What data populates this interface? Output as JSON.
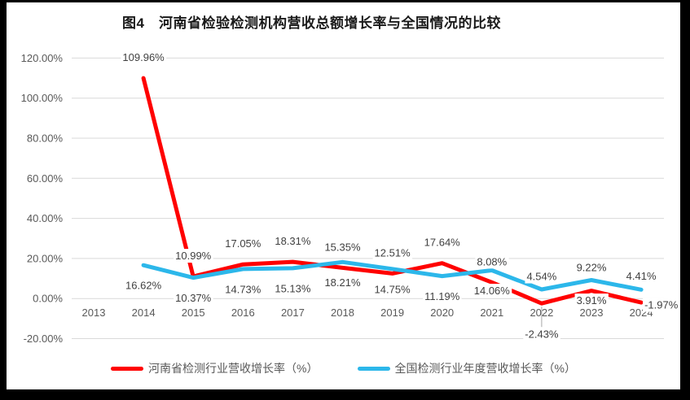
{
  "title": "图4　河南省检验检测机构营收总额增长率与全国情况的比较",
  "chart_data": {
    "type": "line",
    "categories": [
      "2013",
      "2014",
      "2015",
      "2016",
      "2017",
      "2018",
      "2019",
      "2020",
      "2021",
      "2022",
      "2023",
      "2024"
    ],
    "series": [
      {
        "name": "河南省检测行业营收增长率（%）",
        "color": "#FF0000",
        "values": [
          null,
          109.96,
          10.99,
          17.05,
          18.31,
          15.35,
          12.51,
          17.64,
          8.08,
          -2.43,
          3.91,
          -1.97
        ]
      },
      {
        "name": "全国检测行业年度营收增长率（%）",
        "color": "#2CB7EA",
        "values": [
          null,
          16.62,
          10.37,
          14.73,
          15.13,
          18.21,
          14.75,
          11.19,
          14.06,
          4.54,
          9.22,
          4.41
        ]
      }
    ],
    "xlabel": "",
    "ylabel": "",
    "ylim": [
      -20,
      120
    ],
    "ytick_step": 20,
    "ytick_labels": [
      "-20.00%",
      "0.00%",
      "20.00%",
      "40.00%",
      "60.00%",
      "80.00%",
      "100.00%",
      "120.00%"
    ],
    "value_label_format": "0.00%",
    "grid": true,
    "legend_position": "bottom",
    "colors": {
      "gridline": "#D9D9D9",
      "axis_text": "#595959",
      "data_label_text": "#404040",
      "data_label_background": "#FFFFFF",
      "leader_line": "#A6A6A6",
      "frame": "#000000",
      "chart_background": "#FFFFFF"
    }
  }
}
